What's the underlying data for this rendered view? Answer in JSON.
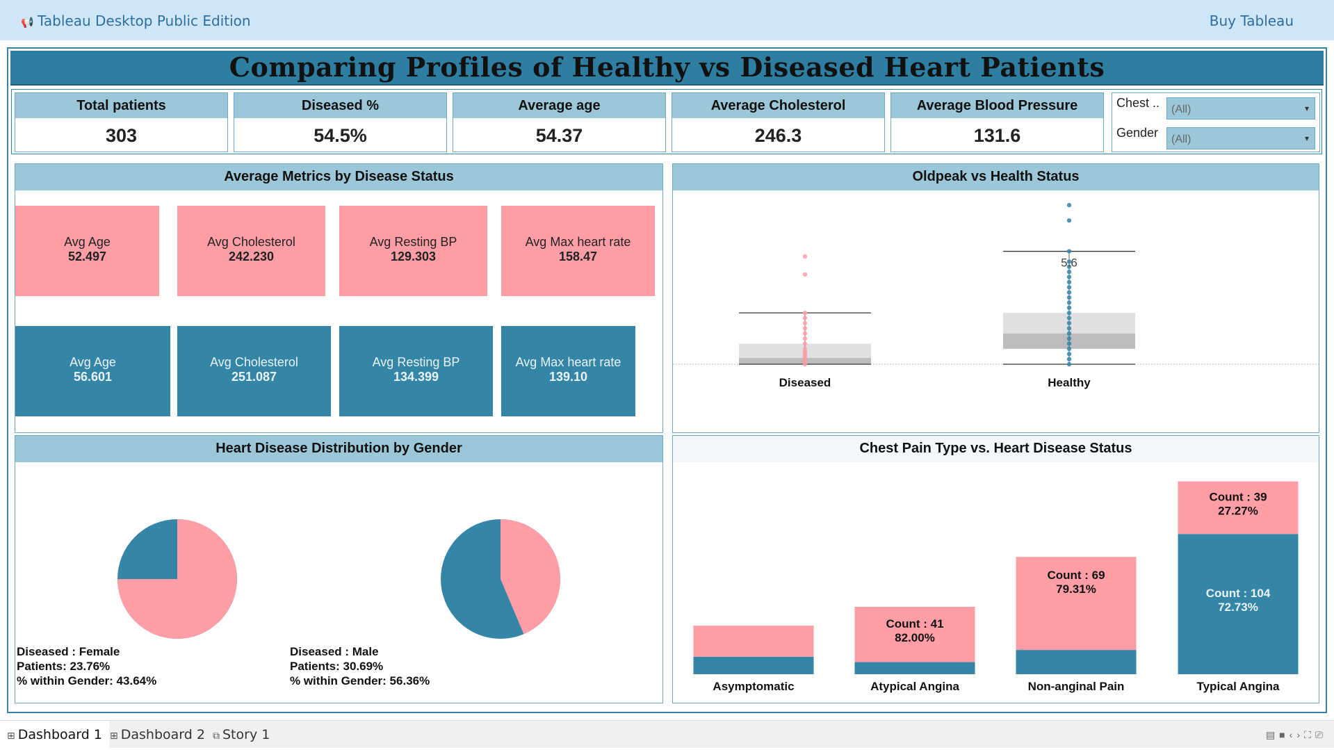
{
  "app": {
    "edition": "Tableau Desktop Public Edition",
    "buy_label": "Buy Tableau",
    "title": "Comparing Profiles of Healthy vs Diseased Heart Patients"
  },
  "kpis": [
    {
      "label": "Total patients",
      "value": "303"
    },
    {
      "label": "Diseased %",
      "value": "54.5%"
    },
    {
      "label": "Average age",
      "value": "54.37"
    },
    {
      "label": "Average Cholesterol",
      "value": "246.3"
    },
    {
      "label": "Average Blood Pressure",
      "value": "131.6"
    }
  ],
  "filters": [
    {
      "label": "Chest ..",
      "value": "(All)"
    },
    {
      "label": "Gender",
      "value": "(All)"
    }
  ],
  "metrics_panel": {
    "title": "Average Metrics by Disease Status",
    "pink": [
      {
        "label": "Avg Age",
        "value": "52.497"
      },
      {
        "label": "Avg Cholesterol",
        "value": "242.230"
      },
      {
        "label": "Avg Resting BP",
        "value": "129.303"
      },
      {
        "label": "Avg Max heart rate",
        "value": "158.47"
      }
    ],
    "blue": [
      {
        "label": "Avg Age",
        "value": "56.601"
      },
      {
        "label": "Avg Cholesterol",
        "value": "251.087"
      },
      {
        "label": "Avg Resting BP",
        "value": "134.399"
      },
      {
        "label": "Avg Max heart rate",
        "value": "139.10"
      }
    ]
  },
  "oldpeak_panel": {
    "title": "Oldpeak vs Health Status",
    "annotation": "5.6",
    "categories": [
      "Diseased",
      "Healthy"
    ]
  },
  "gender_panel": {
    "title": "Heart Disease Distribution by Gender",
    "pies": [
      {
        "line1": "Diseased : Female",
        "line2": "Patients: 23.76%",
        "line3": "% within Gender: 43.64%",
        "pink_pct": 75.0
      },
      {
        "line1": "Diseased : Male",
        "line2": "Patients: 30.69%",
        "line3": "% within Gender: 56.36%",
        "pink_pct": 43.64
      }
    ]
  },
  "chest_panel": {
    "title": "Chest Pain Type vs. Heart Disease Status"
  },
  "colors": {
    "pink": "#ff9ea6",
    "blue": "#3585a6",
    "header": "#9cc7d9",
    "title_bar": "#2e7ea2"
  },
  "chart_data": [
    {
      "type": "scatter",
      "title": "Oldpeak vs Health Status",
      "categories": [
        "Diseased",
        "Healthy"
      ],
      "series": [
        {
          "name": "Diseased",
          "values": [
            0.0,
            0.1,
            0.2,
            0.3,
            0.4,
            0.5,
            0.6,
            0.8,
            1.0,
            1.2,
            1.4,
            1.6,
            1.8,
            2.0,
            3.5,
            4.2
          ]
        },
        {
          "name": "Healthy",
          "values": [
            0.0,
            0.2,
            0.4,
            0.6,
            0.8,
            1.0,
            1.2,
            1.4,
            1.6,
            1.8,
            2.0,
            2.2,
            2.4,
            2.6,
            2.8,
            3.0,
            3.2,
            3.4,
            3.6,
            3.8,
            4.0,
            4.4,
            5.6,
            6.2
          ]
        }
      ],
      "boxes": [
        {
          "name": "Diseased",
          "q1": 0.0,
          "median": 0.25,
          "q3": 0.8,
          "whisker_low": 0.0,
          "whisker_high": 2.0
        },
        {
          "name": "Healthy",
          "q1": 0.6,
          "median": 1.2,
          "q3": 2.0,
          "whisker_low": 0.0,
          "whisker_high": 4.4
        }
      ],
      "ylim": [
        0,
        6.5
      ]
    },
    {
      "type": "pie",
      "title": "Heart Disease Distribution by Gender",
      "series": [
        {
          "name": "Female",
          "values": [
            {
              "label": "Pink",
              "pct": 75.0
            },
            {
              "label": "Blue",
              "pct": 25.0
            }
          ]
        },
        {
          "name": "Male",
          "values": [
            {
              "label": "Pink",
              "pct": 43.64
            },
            {
              "label": "Blue",
              "pct": 56.36
            }
          ]
        }
      ]
    },
    {
      "type": "bar",
      "title": "Chest Pain Type vs. Heart Disease Status",
      "categories": [
        "Asymptomatic",
        "Atypical Angina",
        "Non-anginal Pain",
        "Typical Angina"
      ],
      "series": [
        {
          "name": "Blue",
          "values": [
            13,
            9,
            18,
            104
          ]
        },
        {
          "name": "Pink",
          "values": [
            23,
            41,
            69,
            39
          ]
        }
      ],
      "labels": [
        {
          "category": "Atypical Angina",
          "text1": "Count : 41",
          "text2": "82.00%"
        },
        {
          "category": "Non-anginal Pain",
          "text1": "Count : 69",
          "text2": "79.31%"
        },
        {
          "category": "Typical Angina",
          "text1": "Count : 39",
          "text2": "27.27%"
        },
        {
          "category": "Typical Angina",
          "text1": "Count : 104",
          "text2": "72.73%",
          "on": "blue"
        }
      ],
      "ylim": [
        0,
        150
      ]
    }
  ],
  "tabs": [
    {
      "label": "Dashboard 1"
    },
    {
      "label": "Dashboard 2"
    },
    {
      "label": "Story 1"
    }
  ]
}
